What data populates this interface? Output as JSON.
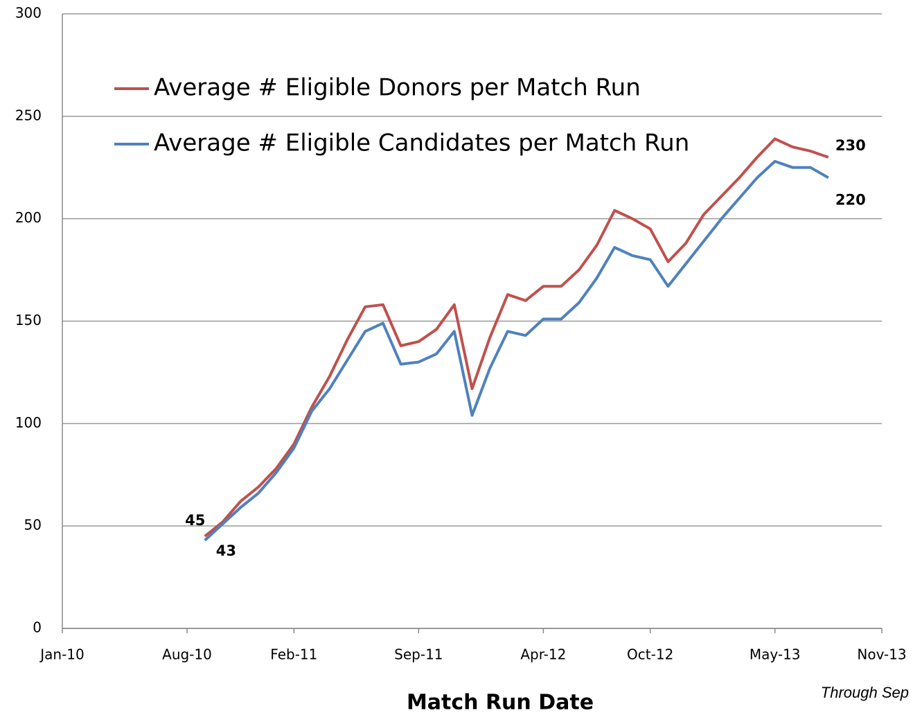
{
  "chart_data": {
    "type": "line",
    "x_label": "Match Run Date",
    "annotation": "Through Sep",
    "x": [
      "Sep-10",
      "Oct-10",
      "Nov-10",
      "Dec-10",
      "Jan-11",
      "Feb-11",
      "Mar-11",
      "Apr-11",
      "May-11",
      "Jun-11",
      "Jul-11",
      "Aug-11",
      "Sep-11",
      "Oct-11",
      "Nov-11",
      "Dec-11",
      "Jan-12",
      "Feb-12",
      "Mar-12",
      "Apr-12",
      "May-12",
      "Jun-12",
      "Jul-12",
      "Aug-12",
      "Sep-12",
      "Oct-12",
      "Nov-12",
      "Dec-12",
      "Jan-13",
      "Feb-13",
      "Mar-13",
      "Apr-13",
      "May-13",
      "Jun-13",
      "Jul-13",
      "Aug-13"
    ],
    "series": [
      {
        "name": "Average # Eligible Donors per Match Run",
        "color": "#c0504d",
        "values": [
          45,
          52,
          62,
          69,
          78,
          90,
          108,
          123,
          141,
          157,
          158,
          138,
          140,
          146,
          158,
          117,
          142,
          163,
          160,
          167,
          167,
          175,
          187,
          204,
          200,
          195,
          179,
          188,
          202,
          211,
          220,
          230,
          239,
          235,
          233,
          230
        ],
        "value_labels": [
          "45",
          null,
          null,
          null,
          null,
          null,
          null,
          null,
          null,
          null,
          null,
          null,
          null,
          null,
          null,
          null,
          null,
          null,
          null,
          null,
          null,
          null,
          null,
          null,
          null,
          null,
          null,
          null,
          null,
          null,
          null,
          null,
          null,
          null,
          null,
          "230"
        ]
      },
      {
        "name": "Average # Eligible Candidates per Match Run",
        "color": "#4f81bd",
        "values": [
          43,
          51,
          59,
          66,
          76,
          88,
          106,
          117,
          131,
          145,
          149,
          129,
          130,
          134,
          145,
          104,
          127,
          145,
          143,
          151,
          151,
          159,
          171,
          186,
          182,
          180,
          167,
          178,
          189,
          200,
          210,
          220,
          228,
          225,
          225,
          220
        ],
        "value_labels": [
          "43",
          null,
          null,
          null,
          null,
          null,
          null,
          null,
          null,
          null,
          null,
          null,
          null,
          null,
          null,
          null,
          null,
          null,
          null,
          null,
          null,
          null,
          null,
          null,
          null,
          null,
          null,
          null,
          null,
          null,
          null,
          null,
          null,
          null,
          null,
          "220"
        ]
      }
    ],
    "xlim": [
      "Jan-10",
      "Nov-13"
    ],
    "xticks": [
      "Jan-10",
      "Aug-10",
      "Feb-11",
      "Sep-11",
      "Apr-12",
      "Oct-12",
      "May-13",
      "Nov-13"
    ],
    "ylim": [
      0,
      300
    ],
    "yticks": [
      0,
      50,
      100,
      150,
      200,
      250,
      300
    ],
    "grid": true,
    "legend": "top-left"
  }
}
